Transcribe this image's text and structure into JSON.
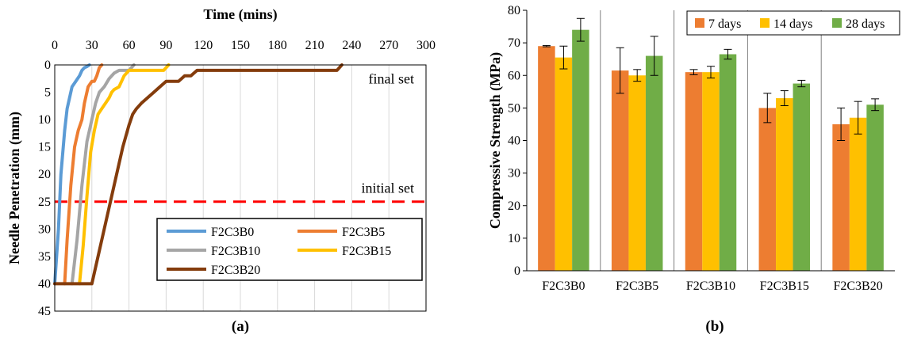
{
  "chart_data": [
    {
      "type": "line",
      "panel_label": "(a)",
      "xlabel": "Time (mins)",
      "ylabel": "Needle Penetration (mm)",
      "xlim": [
        0,
        300
      ],
      "ylim": [
        0,
        45
      ],
      "y_inverted": true,
      "x_axis_position": "top",
      "xticks": [
        "0",
        "30",
        "60",
        "90",
        "120",
        "150",
        "180",
        "210",
        "240",
        "270",
        "300"
      ],
      "yticks": [
        "0",
        "5",
        "10",
        "15",
        "20",
        "25",
        "30",
        "35",
        "40",
        "45"
      ],
      "grid": "vertical",
      "legend": "bottom-right",
      "annotations": [
        {
          "text": "final set",
          "x": 245,
          "y": 2.5
        },
        {
          "text": "initial set",
          "x": 245,
          "y": 22.5
        }
      ],
      "reference_line": {
        "label": "initial set",
        "y": 25,
        "color": "#ff0000",
        "style": "dashed"
      },
      "series": [
        {
          "name": "F2C3B0",
          "color": "#5b9bd5",
          "x": [
            0,
            3,
            5,
            8,
            10,
            12,
            14,
            17,
            20,
            22,
            24,
            26,
            28
          ],
          "y": [
            40,
            30,
            20,
            12,
            8,
            6,
            4,
            3,
            2,
            1,
            0.5,
            0.3,
            0
          ]
        },
        {
          "name": "F2C3B5",
          "color": "#ed7d31",
          "x": [
            8,
            10,
            13,
            16,
            19,
            22,
            24,
            27,
            30,
            32,
            34,
            36,
            38
          ],
          "y": [
            40,
            32,
            22,
            15,
            12,
            10,
            7,
            4,
            3,
            3,
            2,
            0.5,
            0
          ]
        },
        {
          "name": "F2C3B10",
          "color": "#a5a5a5",
          "x": [
            14,
            18,
            22,
            26,
            30,
            33,
            36,
            40,
            44,
            48,
            52,
            56,
            60,
            62,
            64
          ],
          "y": [
            40,
            32,
            22,
            14,
            10,
            7,
            5,
            4,
            2.5,
            1.5,
            1,
            1,
            1,
            0.5,
            0
          ]
        },
        {
          "name": "F2C3B15",
          "color": "#ffc000",
          "x": [
            20,
            23,
            26,
            29,
            32,
            35,
            38,
            41,
            44,
            46,
            48,
            52,
            56,
            60,
            64,
            68,
            72,
            76,
            80,
            84,
            88,
            90,
            92
          ],
          "y": [
            40,
            33,
            24,
            16,
            12,
            9,
            8,
            7,
            6,
            5,
            4.5,
            4,
            2,
            1,
            1,
            1,
            1,
            1,
            1,
            1,
            1,
            0.5,
            0
          ]
        },
        {
          "name": "F2C3B20",
          "color": "#843c0c",
          "x": [
            0,
            30,
            40,
            50,
            55,
            60,
            63,
            66,
            70,
            75,
            80,
            85,
            90,
            100,
            105,
            110,
            115,
            130,
            160,
            190,
            220,
            228,
            232
          ],
          "y": [
            40,
            40,
            30,
            20,
            15,
            11,
            9,
            8,
            7,
            6,
            5,
            4,
            3,
            3,
            2,
            2,
            1,
            1,
            1,
            1,
            1,
            1,
            0
          ]
        }
      ]
    },
    {
      "type": "bar",
      "panel_label": "(b)",
      "ylabel": "Compressive Strength (MPa)",
      "ylim": [
        0,
        80
      ],
      "yticks": [
        "0",
        "10",
        "20",
        "30",
        "40",
        "50",
        "60",
        "70",
        "80"
      ],
      "legend": "top-right",
      "categories": [
        "F2C3B0",
        "F2C3B5",
        "F2C3B10",
        "F2C3B15",
        "F2C3B20"
      ],
      "series": [
        {
          "name": "7 days",
          "color": "#ed7d31",
          "values": [
            69,
            61.5,
            61,
            50,
            45
          ],
          "error": [
            0.2,
            7,
            0.8,
            4.5,
            5
          ]
        },
        {
          "name": "14 days",
          "color": "#ffc000",
          "values": [
            65.5,
            60,
            61,
            53,
            47
          ],
          "error": [
            3.5,
            1.8,
            1.8,
            2.3,
            5
          ]
        },
        {
          "name": "28 days",
          "color": "#70ad47",
          "values": [
            74,
            66,
            66.5,
            57.5,
            51
          ],
          "error": [
            3.5,
            6,
            1.5,
            1,
            1.8
          ]
        }
      ]
    }
  ]
}
